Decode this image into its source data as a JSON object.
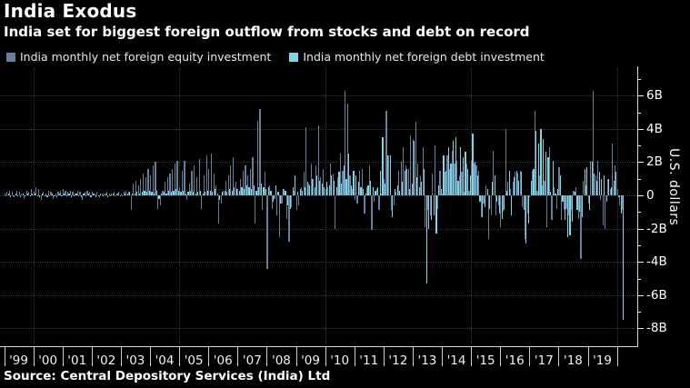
{
  "header": {
    "title": "India Exodus",
    "subtitle": "India set for biggest foreign outflow from stocks and debt on record"
  },
  "source": "Source: Central Depository Services (India) Ltd",
  "colors": {
    "background": "#000000",
    "equity": "#64809c",
    "debt": "#7dd5e6",
    "axis": "#d9d9d9",
    "grid": "#3b3b3b",
    "text": "#ffffff"
  },
  "legend": [
    {
      "label": "India monthly net foreign equity investment",
      "color": "#64809c"
    },
    {
      "label": "India monthly net foreign debt investment",
      "color": "#7dd5e6"
    }
  ],
  "chart_data": {
    "type": "bar",
    "title": "India Exodus",
    "subtitle": "India set for biggest foreign outflow from stocks and debt on record",
    "frequency": "monthly",
    "period": "Jan 1999 - Mar 2020",
    "ylabel": "U.S. dollars",
    "unit": "billions of U.S. dollars",
    "ylim": [
      -9.1,
      7.7
    ],
    "grid": "dotted horizontal every 2B; dotted vertical at 2000, 2005, 2010, 2015, 2020",
    "legend_position": "top-left",
    "y_ticks": [
      {
        "v": 6,
        "label": "6B"
      },
      {
        "v": 4,
        "label": "4B"
      },
      {
        "v": 2,
        "label": "2B"
      },
      {
        "v": 0,
        "label": "0"
      },
      {
        "v": -2,
        "label": "-2B"
      },
      {
        "v": -4,
        "label": "-4B"
      },
      {
        "v": -6,
        "label": "-6B"
      },
      {
        "v": -8,
        "label": "-8B"
      }
    ],
    "y_minor_ticks": [
      7,
      5,
      3,
      1,
      -1,
      -3,
      -5,
      -7
    ],
    "x_year_labels": [
      "'99",
      "'00",
      "'01",
      "'02",
      "'03",
      "'04",
      "'05",
      "'06",
      "'07",
      "'08",
      "'09",
      "'10",
      "'11",
      "'12",
      "'13",
      "'14",
      "'15",
      "'16",
      "'17",
      "'18",
      "'19"
    ],
    "x_vgrid_years": [
      2000,
      2005,
      2010,
      2015,
      2020
    ],
    "series": [
      {
        "name": "India monthly net foreign equity investment",
        "color": "#64809c",
        "values_by_year": {
          "1999": [
            0.1,
            0.2,
            0.3,
            0.2,
            -0.1,
            0.3,
            0.2,
            0.1,
            -0.2,
            0.3,
            0.2,
            0.4
          ],
          "2000": [
            0.3,
            0.5,
            0.4,
            -0.3,
            0.2,
            0.1,
            0.3,
            0.2,
            -0.2,
            0.1,
            0.2,
            0.3
          ],
          "2001": [
            0.4,
            0.3,
            0.2,
            0.3,
            0.2,
            0.1,
            0.3,
            0.2,
            -0.3,
            0.2,
            0.3,
            0.2
          ],
          "2002": [
            0.2,
            0.1,
            0.2,
            -0.1,
            0.1,
            0.1,
            0.2,
            0.1,
            0.1,
            0.2,
            0.1,
            0.2
          ],
          "2003": [
            0.1,
            0.2,
            0.3,
            0.2,
            -0.9,
            0.7,
            0.9,
            0.6,
            1.0,
            1.3,
            1.1,
            1.6
          ],
          "2004": [
            1.2,
            1.8,
            2.0,
            -0.8,
            -0.6,
            0.3,
            0.8,
            1.1,
            1.3,
            1.6,
            1.9,
            2.1
          ],
          "2005": [
            0.5,
            1.5,
            2.1,
            -0.3,
            0.7,
            1.5,
            1.8,
            1.1,
            2.2,
            -0.8,
            1.2,
            2.4
          ],
          "2006": [
            1.6,
            2.5,
            1.3,
            0.6,
            -1.7,
            -0.5,
            0.3,
            0.9,
            1.2,
            1.8,
            2.3,
            0.8
          ],
          "2007": [
            0.4,
            1.0,
            1.5,
            1.8,
            1.2,
            1.6,
            2.3,
            -1.7,
            4.5,
            5.2,
            -0.9,
            1.4
          ],
          "2008": [
            -4.4,
            0.6,
            -0.8,
            -0.2,
            -1.2,
            -2.5,
            -0.5,
            0.4,
            -1.4,
            -2.8,
            -0.7,
            0.3
          ],
          "2009": [
            -0.9,
            -0.6,
            0.5,
            1.4,
            4.1,
            0.7,
            1.9,
            1.0,
            1.8,
            4.2,
            1.1,
            1.6
          ],
          "2010": [
            0.4,
            0.5,
            1.9,
            1.3,
            -2.0,
            1.1,
            2.5,
            1.5,
            6.3,
            5.5,
            1.2,
            0.4
          ],
          "2011": [
            -0.3,
            -0.5,
            1.5,
            1.6,
            -1.1,
            0.5,
            1.8,
            -2.1,
            -0.4,
            0.4,
            -0.9,
            0.1
          ],
          "2012": [
            1.0,
            5.1,
            2.4,
            -0.9,
            -0.6,
            0.2,
            1.5,
            2.0,
            2.9,
            1.8,
            1.6,
            3.6
          ],
          "2013": [
            3.4,
            4.4,
            1.9,
            1.2,
            2.9,
            -1.9,
            -0.9,
            -1.2,
            1.3,
            3.0,
            -0.8,
            1.5
          ],
          "2014": [
            0.1,
            1.4,
            2.4,
            1.6,
            2.7,
            1.9,
            2.1,
            1.2,
            1.4,
            0.2,
            1.9,
            0.3
          ],
          "2015": [
            2.1,
            1.9,
            1.8,
            1.5,
            -1.3,
            -0.5,
            0.6,
            -2.6,
            -1.2,
            2.7,
            -1.2,
            -0.6
          ],
          "2016": [
            -1.9,
            -1.0,
            4.0,
            0.8,
            0.4,
            0.8,
            1.4,
            1.3,
            1.5,
            -0.7,
            -2.6,
            -1.1
          ],
          "2017": [
            -0.1,
            1.5,
            5.1,
            0.3,
            1.2,
            0.6,
            0.9,
            -1.9,
            2.9,
            -1.5,
            0.5,
            -0.8
          ],
          "2018": [
            1.7,
            -1.5,
            -0.9,
            -0.8,
            -1.2,
            -0.9,
            0.3,
            0.5,
            -1.4,
            -3.8,
            0.9,
            0.6
          ],
          "2019": [
            -0.5,
            2.1,
            6.3,
            1.2,
            2.1,
            -0.3,
            -1.8,
            -2.0,
            1.0,
            0.4,
            3.1,
            1.8
          ],
          "2020": [
            0.4,
            -0.6,
            -0.9
          ]
        }
      },
      {
        "name": "India monthly net foreign debt investment",
        "color": "#7dd5e6",
        "values_by_year": {
          "1999": [
            0.0,
            0.1,
            -0.1,
            0.0,
            0.1,
            0.0,
            -0.1,
            0.1,
            0.0,
            0.1,
            0.0,
            0.1
          ],
          "2000": [
            0.1,
            0.0,
            -0.1,
            0.1,
            0.0,
            -0.1,
            0.0,
            0.1,
            0.0,
            -0.1,
            0.1,
            0.0
          ],
          "2001": [
            0.1,
            0.0,
            0.1,
            -0.1,
            0.0,
            0.1,
            0.0,
            -0.1,
            0.1,
            0.0,
            0.1,
            -0.1
          ],
          "2002": [
            0.1,
            -0.1,
            0.0,
            0.1,
            0.0,
            0.1,
            -0.1,
            0.0,
            0.1,
            0.0,
            0.1,
            0.0
          ],
          "2003": [
            0.0,
            0.1,
            0.1,
            0.2,
            0.1,
            0.1,
            0.2,
            0.1,
            0.2,
            0.3,
            0.2,
            0.3
          ],
          "2004": [
            0.2,
            0.1,
            0.3,
            -0.2,
            0.1,
            0.2,
            0.1,
            0.3,
            0.2,
            0.3,
            0.4,
            0.3
          ],
          "2005": [
            0.2,
            0.3,
            0.1,
            0.2,
            0.3,
            0.2,
            0.1,
            0.2,
            0.3,
            0.1,
            0.2,
            0.3
          ],
          "2006": [
            0.3,
            0.2,
            0.4,
            0.1,
            -0.3,
            0.2,
            0.3,
            0.2,
            0.4,
            0.3,
            0.5,
            0.4
          ],
          "2007": [
            0.3,
            0.5,
            0.4,
            0.6,
            0.5,
            0.4,
            0.6,
            0.3,
            0.5,
            0.7,
            0.5,
            0.4
          ],
          "2008": [
            0.5,
            0.3,
            -0.4,
            0.6,
            0.2,
            -0.5,
            0.4,
            0.3,
            -0.6,
            -0.8,
            0.5,
            1.2
          ],
          "2009": [
            0.2,
            0.4,
            0.3,
            0.5,
            0.8,
            0.6,
            1.0,
            0.5,
            1.2,
            0.9,
            0.7,
            0.5
          ],
          "2010": [
            0.8,
            0.6,
            1.2,
            0.9,
            0.5,
            1.4,
            0.7,
            1.8,
            1.0,
            2.5,
            0.6,
            1.5
          ],
          "2011": [
            1.2,
            0.8,
            0.5,
            0.4,
            0.1,
            0.6,
            0.9,
            0.5,
            0.3,
            0.5,
            1.5,
            3.5
          ],
          "2012": [
            0.7,
            2.4,
            2.4,
            -1.3,
            0.4,
            0.6,
            0.3,
            0.8,
            1.5,
            1.6,
            0.4,
            0.7
          ],
          "2013": [
            3.3,
            1.1,
            0.5,
            0.8,
            1.6,
            -5.3,
            -2.0,
            -1.5,
            -1.2,
            -2.3,
            0.6,
            0.4
          ],
          "2014": [
            2.4,
            1.5,
            2.9,
            1.9,
            3.3,
            3.5,
            0.9,
            2.9,
            2.3,
            2.6,
            1.6,
            1.2
          ],
          "2015": [
            3.7,
            2.0,
            1.2,
            -0.4,
            -1.3,
            -0.7,
            0.4,
            -0.8,
            0.8,
            1.2,
            -0.4,
            -1.1
          ],
          "2016": [
            -1.4,
            -0.9,
            0.3,
            1.5,
            -1.2,
            1.1,
            1.5,
            0.9,
            1.4,
            -0.9,
            -2.9,
            -1.7
          ],
          "2017": [
            0.9,
            1.6,
            3.9,
            3.1,
            4.0,
            3.4,
            2.6,
            2.3,
            0.2,
            2.1,
            0.1,
            0.4
          ],
          "2018": [
            1.2,
            -0.4,
            -1.5,
            -2.5,
            -2.4,
            -1.6,
            0.2,
            -0.9,
            -1.0,
            -1.3,
            1.6,
            1.7
          ],
          "2019": [
            -0.9,
            2.0,
            1.3,
            0.9,
            1.4,
            1.0,
            1.2,
            -0.4,
            1.0,
            0.5,
            0.9,
            1.4
          ],
          "2020": [
            -0.1,
            -1.1,
            -7.5
          ]
        }
      }
    ]
  }
}
